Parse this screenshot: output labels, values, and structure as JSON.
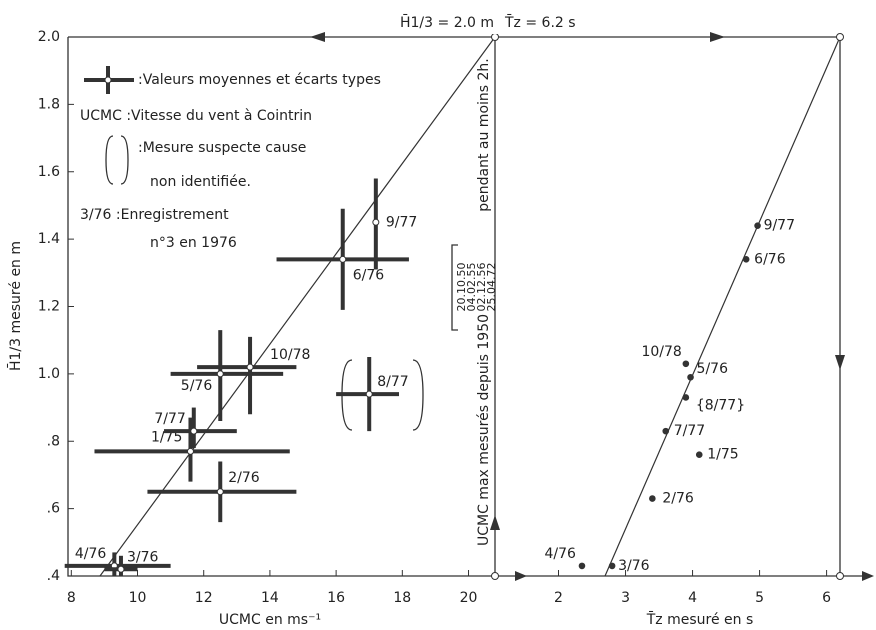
{
  "chart_data": [
    {
      "type": "scatter",
      "title": "H̄1/3 = 2.0 m",
      "xlabel": "UCMC  en  ms⁻¹",
      "ylabel": "H̄1/3 mesuré en m",
      "xlim": [
        7.9,
        20.8
      ],
      "xticks": [
        8,
        10,
        12,
        14,
        16,
        18,
        20
      ],
      "ylim": [
        0.4,
        2.0
      ],
      "yticks": [
        {
          "value": 0.4,
          "label": ".4"
        },
        {
          "value": 0.6,
          "label": ".6"
        },
        {
          "value": 0.8,
          "label": ".8"
        },
        {
          "value": 1.0,
          "label": "1.0"
        },
        1.2,
        1.4,
        1.6,
        1.8,
        {
          "value": 2.0,
          "label": "2.0"
        }
      ],
      "labels": [
        "4/76",
        "3/76",
        "1/75",
        "7/77",
        "2/76",
        "5/76",
        "10/78",
        "6/76",
        "9/77",
        "8/77"
      ],
      "x": [
        9.3,
        9.5,
        11.6,
        11.7,
        12.5,
        12.5,
        13.4,
        16.2,
        17.2,
        17.0
      ],
      "y": [
        0.43,
        0.42,
        0.77,
        0.83,
        0.65,
        1.0,
        1.02,
        1.34,
        1.45,
        0.94
      ],
      "x_low": [
        7.8,
        9.0,
        8.7,
        10.8,
        10.3,
        11.0,
        11.8,
        14.2,
        null,
        16.0
      ],
      "x_high": [
        11.0,
        10.0,
        14.6,
        13.0,
        14.8,
        14.4,
        14.8,
        18.2,
        null,
        17.9
      ],
      "y_low": [
        0.4,
        0.4,
        0.68,
        0.78,
        0.56,
        0.86,
        0.88,
        1.19,
        1.31,
        0.83
      ],
      "y_high": [
        0.47,
        0.46,
        0.87,
        0.9,
        0.74,
        1.13,
        1.11,
        1.49,
        1.58,
        1.05
      ],
      "color": "#333333",
      "legend": [
        ":Valeurs moyennes et écarts types",
        "UCMC :Vitesse du vent à Cointrin",
        ":Mesure suspecte cause",
        "non identifiée.",
        "3/76 :Enregistrement",
        "n°3 en 1976"
      ],
      "annotations": [
        "pendant au moins 2h.",
        "UCMC max mesurés depuis 1950",
        "20.10.50",
        "04.02.55",
        "02.12.56",
        "25.04.72"
      ]
    },
    {
      "type": "scatter",
      "title": "T̄z = 6.2 s",
      "xlabel": "T̄z  mesuré  en  s",
      "xlim": [
        1.5,
        6.2
      ],
      "xticks": [
        2,
        3,
        4,
        5,
        6
      ],
      "ylim": [
        0.4,
        2.0
      ],
      "labels": [
        "9/77",
        "6/76",
        "10/78",
        "5/76",
        "{8/77}",
        "7/77",
        "1/75",
        "2/76",
        "4/76",
        "3/76"
      ],
      "x": [
        4.97,
        4.8,
        3.9,
        3.97,
        3.9,
        3.6,
        4.1,
        3.4,
        2.35,
        2.8
      ],
      "y": [
        1.44,
        1.34,
        1.03,
        0.99,
        0.93,
        0.83,
        0.76,
        0.63,
        0.43,
        0.43
      ],
      "color": "#333333"
    }
  ]
}
